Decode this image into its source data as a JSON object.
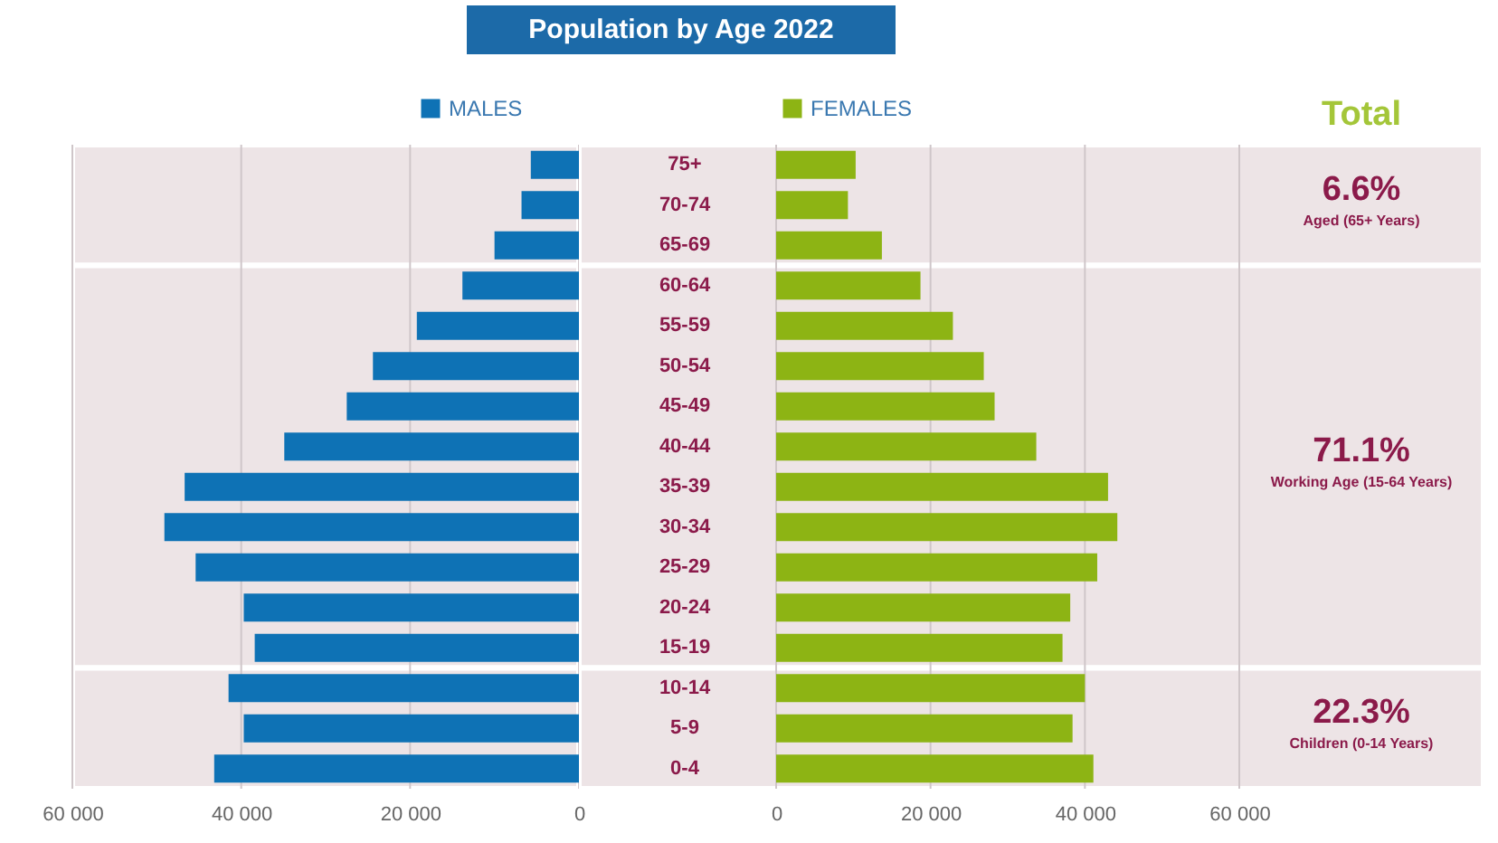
{
  "chart_data": [
    {
      "type": "bar",
      "orientation": "horizontal",
      "title": "Population by Age 2022",
      "categories": [
        "75+",
        "70-74",
        "65-69",
        "60-64",
        "55-59",
        "50-54",
        "45-49",
        "40-44",
        "35-39",
        "30-34",
        "25-29",
        "20-24",
        "15-19",
        "10-14",
        "5-9",
        "0-4"
      ],
      "series": [
        {
          "name": "MALES",
          "color": "#0e72b5",
          "values": [
            5700,
            6800,
            10000,
            13800,
            19200,
            24400,
            27500,
            34900,
            46700,
            49100,
            45400,
            39700,
            38400,
            41500,
            39700,
            43200
          ]
        }
      ],
      "xlim": [
        60000,
        0
      ],
      "xticks": [
        {
          "value": 60000,
          "label": "60 000"
        },
        {
          "value": 40000,
          "label": "40 000"
        },
        {
          "value": 20000,
          "label": "20 000"
        },
        0
      ],
      "grid": "x",
      "legend": "top",
      "tick_labels": "x",
      "bands": [
        {
          "axis": "y",
          "from": "75+",
          "to": "65-69",
          "color": "#ede4e6"
        },
        {
          "axis": "y",
          "from": "60-64",
          "to": "15-19",
          "color": "#ede4e6"
        },
        {
          "axis": "y",
          "from": "10-14",
          "to": "0-4",
          "color": "#ede4e6"
        }
      ]
    },
    {
      "type": "bar",
      "orientation": "horizontal",
      "categories": [
        "75+",
        "70-74",
        "65-69",
        "60-64",
        "55-59",
        "50-54",
        "45-49",
        "40-44",
        "35-39",
        "30-34",
        "25-29",
        "20-24",
        "15-19",
        "10-14",
        "5-9",
        "0-4"
      ],
      "series": [
        {
          "name": "FEMALES",
          "color": "#8db414",
          "values": [
            10300,
            9300,
            13700,
            18700,
            22900,
            26900,
            28300,
            33700,
            43000,
            44200,
            41600,
            38100,
            37100,
            40000,
            38400,
            41100
          ]
        }
      ],
      "xlim": [
        0,
        60000
      ],
      "xticks": [
        0,
        {
          "value": 20000,
          "label": "20 000"
        },
        {
          "value": 40000,
          "label": "40 000"
        },
        {
          "value": 60000,
          "label": "60 000"
        }
      ],
      "grid": "x",
      "legend": "top",
      "bands": [
        {
          "axis": "y",
          "from": "75+",
          "to": "65-69",
          "color": "#ede4e6",
          "label": "6.6%"
        },
        {
          "axis": "y",
          "from": "60-64",
          "to": "15-19",
          "color": "#ede4e6",
          "label": "71.1%"
        },
        {
          "axis": "y",
          "from": "10-14",
          "to": "0-4",
          "color": "#ede4e6",
          "label": "22.3%"
        }
      ],
      "annotations": [
        "Total",
        "Aged (65+ Years)",
        "Working Age (15-64 Years)",
        "Children (0-14 Years)"
      ]
    }
  ]
}
